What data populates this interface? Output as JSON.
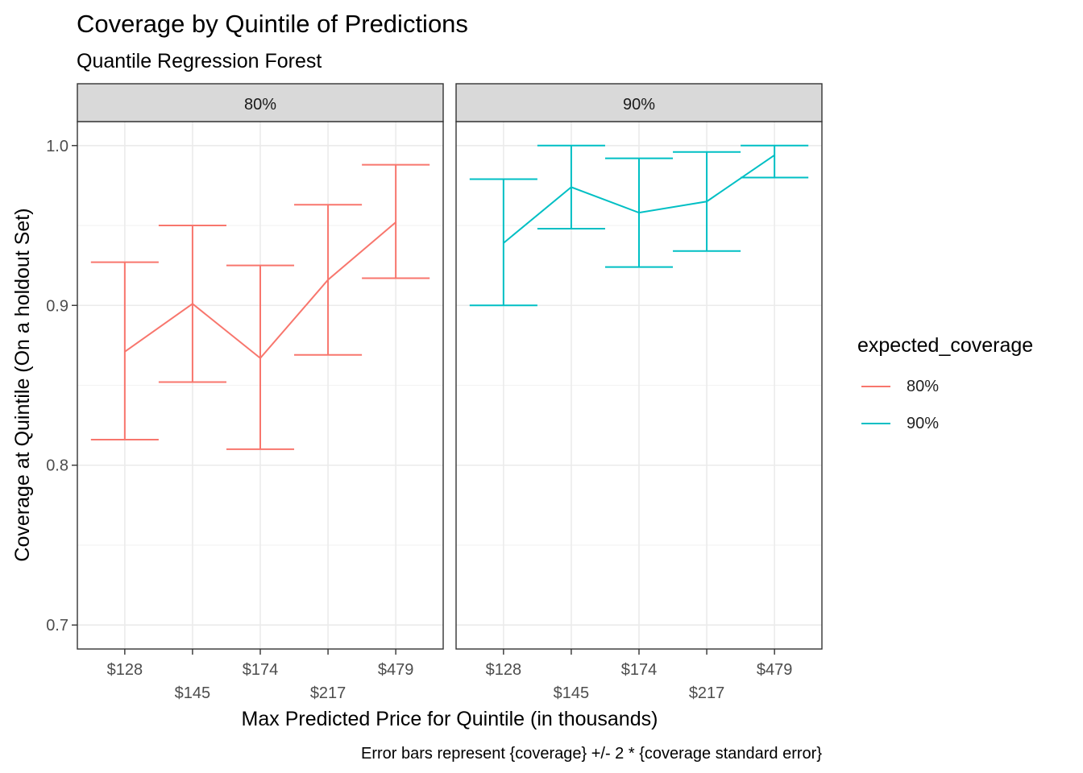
{
  "title": "Coverage by Quintile of Predictions",
  "subtitle": "Quantile Regression Forest",
  "xlabel": "Max Predicted Price for Quintile (in thousands)",
  "ylabel": "Coverage at Quintile (On a holdout Set)",
  "caption": "Error bars represent {coverage} +/- 2 * {coverage standard error}",
  "legend": {
    "title": "expected_coverage",
    "items": [
      {
        "label": "80%",
        "color": "#F8766D"
      },
      {
        "label": "90%",
        "color": "#00BFC4"
      }
    ]
  },
  "chart_data": {
    "type": "line",
    "facet_by": "expected_coverage",
    "categories": [
      "$128",
      "$145",
      "$174",
      "$217",
      "$479"
    ],
    "ylim": [
      0.685,
      1.015
    ],
    "y_ticks": [
      0.7,
      0.8,
      0.9,
      1.0
    ],
    "y_tick_labels": [
      "0.7",
      "0.8",
      "0.9",
      "1.0"
    ],
    "grid": true,
    "legend_position": "right",
    "panels": [
      {
        "strip": "80%",
        "color": "#F8766D",
        "values": [
          0.871,
          0.901,
          0.867,
          0.916,
          0.952
        ],
        "lower": [
          0.816,
          0.852,
          0.81,
          0.869,
          0.917
        ],
        "upper": [
          0.927,
          0.95,
          0.925,
          0.963,
          0.988
        ]
      },
      {
        "strip": "90%",
        "color": "#00BFC4",
        "values": [
          0.939,
          0.974,
          0.958,
          0.965,
          0.994
        ],
        "lower": [
          0.9,
          0.948,
          0.924,
          0.934,
          0.98
        ],
        "upper": [
          0.979,
          1.0,
          0.992,
          0.996,
          1.0
        ]
      }
    ]
  }
}
